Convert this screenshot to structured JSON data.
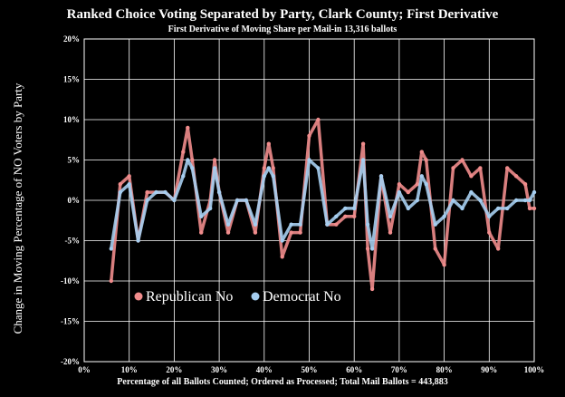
{
  "chart_data": {
    "type": "scatter",
    "title": "Ranked Choice Voting Separated by Party, Clark County; First Derivative",
    "subtitle": "First Derivative of Moving Share per Mail-in 13,316 ballots",
    "xlabel": "Percentage of all Ballots Counted; Ordered as Processed; Total Mail Ballots  =  443,883",
    "ylabel": "Change in Moving Percentage of NO Voters by Party",
    "xlim": [
      0,
      100
    ],
    "ylim": [
      -20,
      20
    ],
    "x_ticks": [
      "0%",
      "10%",
      "20%",
      "30%",
      "40%",
      "50%",
      "60%",
      "70%",
      "80%",
      "90%",
      "100%"
    ],
    "y_ticks": [
      "20%",
      "15%",
      "10%",
      "5%",
      "0%",
      "-5%",
      "-10%",
      "-15%",
      "-20%"
    ],
    "grid": true,
    "legend_position": "bottom-left",
    "series": [
      {
        "name": "Republican No",
        "color": "#f08c8c",
        "x": [
          6,
          8,
          10,
          12,
          14,
          16,
          18,
          20,
          22,
          23,
          24,
          26,
          28,
          29,
          30,
          32,
          34,
          36,
          38,
          40,
          41,
          42,
          44,
          46,
          48,
          50,
          52,
          54,
          56,
          58,
          60,
          62,
          63,
          64,
          66,
          68,
          70,
          72,
          74,
          75,
          76,
          78,
          80,
          82,
          84,
          86,
          88,
          90,
          92,
          94,
          96,
          98,
          99,
          100
        ],
        "y": [
          -10,
          2,
          3,
          -5,
          1,
          1,
          1,
          0,
          6,
          9,
          5,
          -4,
          0,
          5,
          1,
          -4,
          0,
          0,
          -4,
          4,
          7,
          4,
          -7,
          -4,
          -4,
          8,
          10,
          -3,
          -3,
          -2,
          -2,
          7,
          -6,
          -11,
          3,
          -4,
          2,
          1,
          2,
          6,
          5,
          -6,
          -8,
          4,
          5,
          3,
          4,
          -4,
          -6,
          4,
          3,
          2,
          -1,
          -1
        ]
      },
      {
        "name": "Democrat No",
        "color": "#a6cef0",
        "x": [
          6,
          8,
          10,
          12,
          14,
          16,
          18,
          20,
          22,
          23,
          24,
          26,
          28,
          29,
          30,
          32,
          34,
          36,
          38,
          40,
          41,
          42,
          44,
          46,
          48,
          50,
          52,
          54,
          56,
          58,
          60,
          62,
          63,
          64,
          66,
          68,
          70,
          72,
          74,
          75,
          76,
          78,
          80,
          82,
          84,
          86,
          88,
          90,
          92,
          94,
          96,
          98,
          99,
          100
        ],
        "y": [
          -6,
          1,
          2,
          -5,
          0,
          1,
          1,
          0,
          3,
          5,
          4,
          -2,
          -1,
          4,
          1,
          -3,
          0,
          0,
          -3,
          3,
          4,
          3,
          -5,
          -3,
          -3,
          5,
          4,
          -3,
          -2,
          -1,
          -1,
          5,
          -3,
          -6,
          3,
          -2,
          1,
          -1,
          0,
          3,
          2,
          -3,
          -2,
          0,
          -1,
          1,
          0,
          -2,
          -1,
          -1,
          0,
          0,
          0,
          1
        ]
      }
    ]
  }
}
